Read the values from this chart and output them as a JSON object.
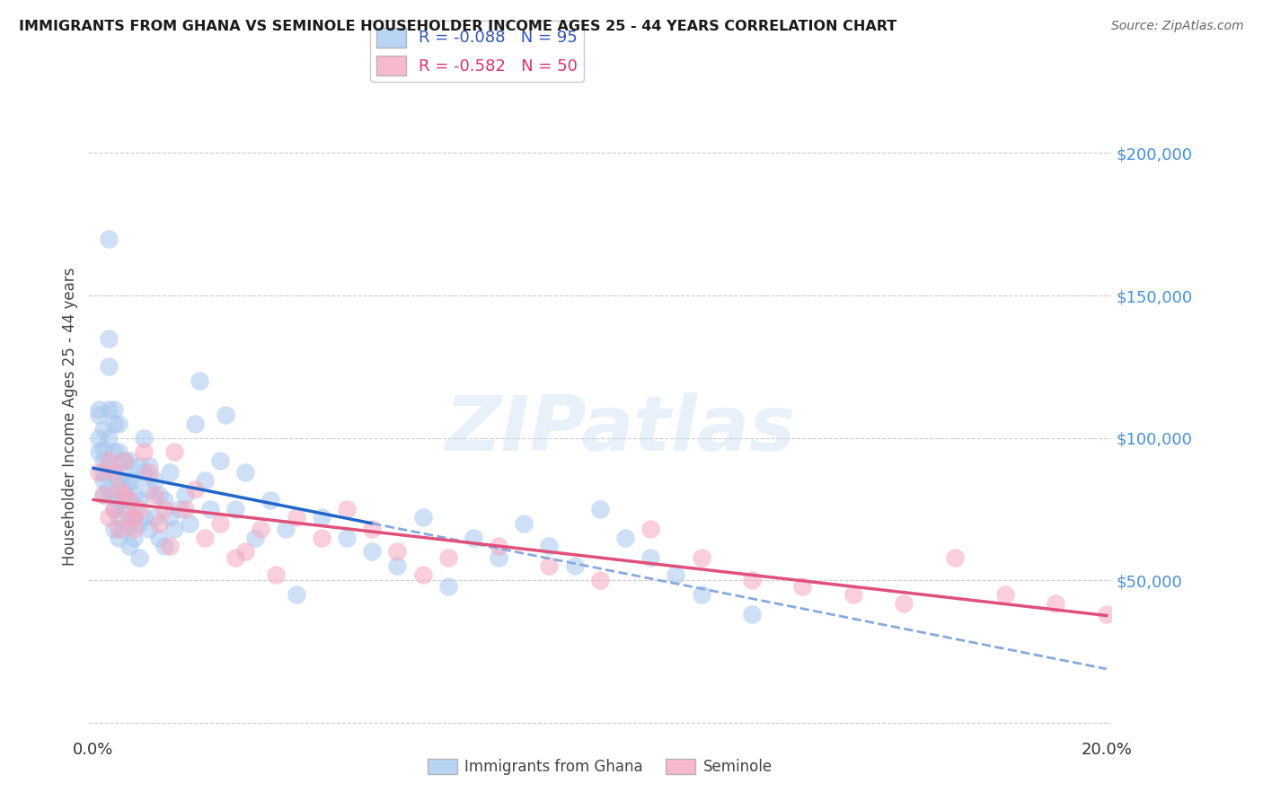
{
  "title": "IMMIGRANTS FROM GHANA VS SEMINOLE HOUSEHOLDER INCOME AGES 25 - 44 YEARS CORRELATION CHART",
  "source": "Source: ZipAtlas.com",
  "ylabel": "Householder Income Ages 25 - 44 years",
  "yticks": [
    0,
    50000,
    100000,
    150000,
    200000
  ],
  "ylim": [
    -5000,
    220000
  ],
  "xlim": [
    -0.001,
    0.201
  ],
  "legend_blue_r": "-0.088",
  "legend_blue_n": "95",
  "legend_pink_r": "-0.582",
  "legend_pink_n": "50",
  "ghana_color": "#a8c8f0",
  "seminole_color": "#f5a8c0",
  "ghana_line_solid_color": "#2266cc",
  "ghana_line_dash_color": "#88aadd",
  "seminole_line_color": "#e0507a",
  "watermark": "ZIPatlas",
  "background_color": "#ffffff",
  "grid_color": "#cccccc",
  "ghana_scatter_x": [
    0.001,
    0.001,
    0.001,
    0.001,
    0.002,
    0.002,
    0.002,
    0.002,
    0.002,
    0.002,
    0.003,
    0.003,
    0.003,
    0.003,
    0.003,
    0.003,
    0.003,
    0.004,
    0.004,
    0.004,
    0.004,
    0.004,
    0.004,
    0.004,
    0.005,
    0.005,
    0.005,
    0.005,
    0.005,
    0.005,
    0.006,
    0.006,
    0.006,
    0.006,
    0.006,
    0.007,
    0.007,
    0.007,
    0.007,
    0.007,
    0.008,
    0.008,
    0.008,
    0.008,
    0.009,
    0.009,
    0.009,
    0.009,
    0.01,
    0.01,
    0.01,
    0.011,
    0.011,
    0.011,
    0.012,
    0.012,
    0.013,
    0.013,
    0.014,
    0.014,
    0.015,
    0.015,
    0.016,
    0.017,
    0.018,
    0.019,
    0.02,
    0.021,
    0.022,
    0.023,
    0.025,
    0.026,
    0.028,
    0.03,
    0.032,
    0.035,
    0.038,
    0.04,
    0.045,
    0.05,
    0.055,
    0.06,
    0.065,
    0.07,
    0.075,
    0.08,
    0.085,
    0.09,
    0.095,
    0.1,
    0.105,
    0.11,
    0.115,
    0.12,
    0.13
  ],
  "ghana_scatter_y": [
    110000,
    108000,
    100000,
    95000,
    103000,
    96000,
    92000,
    88000,
    85000,
    80000,
    170000,
    135000,
    125000,
    110000,
    100000,
    90000,
    82000,
    110000,
    105000,
    95000,
    88000,
    80000,
    75000,
    68000,
    105000,
    95000,
    85000,
    78000,
    72000,
    65000,
    92000,
    88000,
    82000,
    75000,
    68000,
    92000,
    85000,
    78000,
    70000,
    62000,
    85000,
    80000,
    72000,
    65000,
    90000,
    78000,
    70000,
    58000,
    100000,
    88000,
    72000,
    90000,
    82000,
    68000,
    85000,
    72000,
    80000,
    65000,
    78000,
    62000,
    88000,
    72000,
    68000,
    75000,
    80000,
    70000,
    105000,
    120000,
    85000,
    75000,
    92000,
    108000,
    75000,
    88000,
    65000,
    78000,
    68000,
    45000,
    72000,
    65000,
    60000,
    55000,
    72000,
    48000,
    65000,
    58000,
    70000,
    62000,
    55000,
    75000,
    65000,
    58000,
    52000,
    45000,
    38000
  ],
  "seminole_scatter_x": [
    0.001,
    0.002,
    0.003,
    0.003,
    0.004,
    0.004,
    0.005,
    0.005,
    0.006,
    0.006,
    0.007,
    0.007,
    0.008,
    0.008,
    0.009,
    0.01,
    0.011,
    0.012,
    0.013,
    0.014,
    0.015,
    0.016,
    0.018,
    0.02,
    0.022,
    0.025,
    0.028,
    0.03,
    0.033,
    0.036,
    0.04,
    0.045,
    0.05,
    0.055,
    0.06,
    0.065,
    0.07,
    0.08,
    0.09,
    0.1,
    0.11,
    0.12,
    0.13,
    0.14,
    0.15,
    0.16,
    0.17,
    0.18,
    0.19,
    0.2
  ],
  "seminole_scatter_y": [
    88000,
    80000,
    92000,
    72000,
    88000,
    75000,
    82000,
    68000,
    92000,
    80000,
    72000,
    78000,
    68000,
    72000,
    75000,
    95000,
    88000,
    80000,
    70000,
    75000,
    62000,
    95000,
    75000,
    82000,
    65000,
    70000,
    58000,
    60000,
    68000,
    52000,
    72000,
    65000,
    75000,
    68000,
    60000,
    52000,
    58000,
    62000,
    55000,
    50000,
    68000,
    58000,
    50000,
    48000,
    45000,
    42000,
    58000,
    45000,
    42000,
    38000
  ],
  "ghana_line_solid_end_x": 0.055,
  "ghana_line_dash_start_x": 0.055
}
